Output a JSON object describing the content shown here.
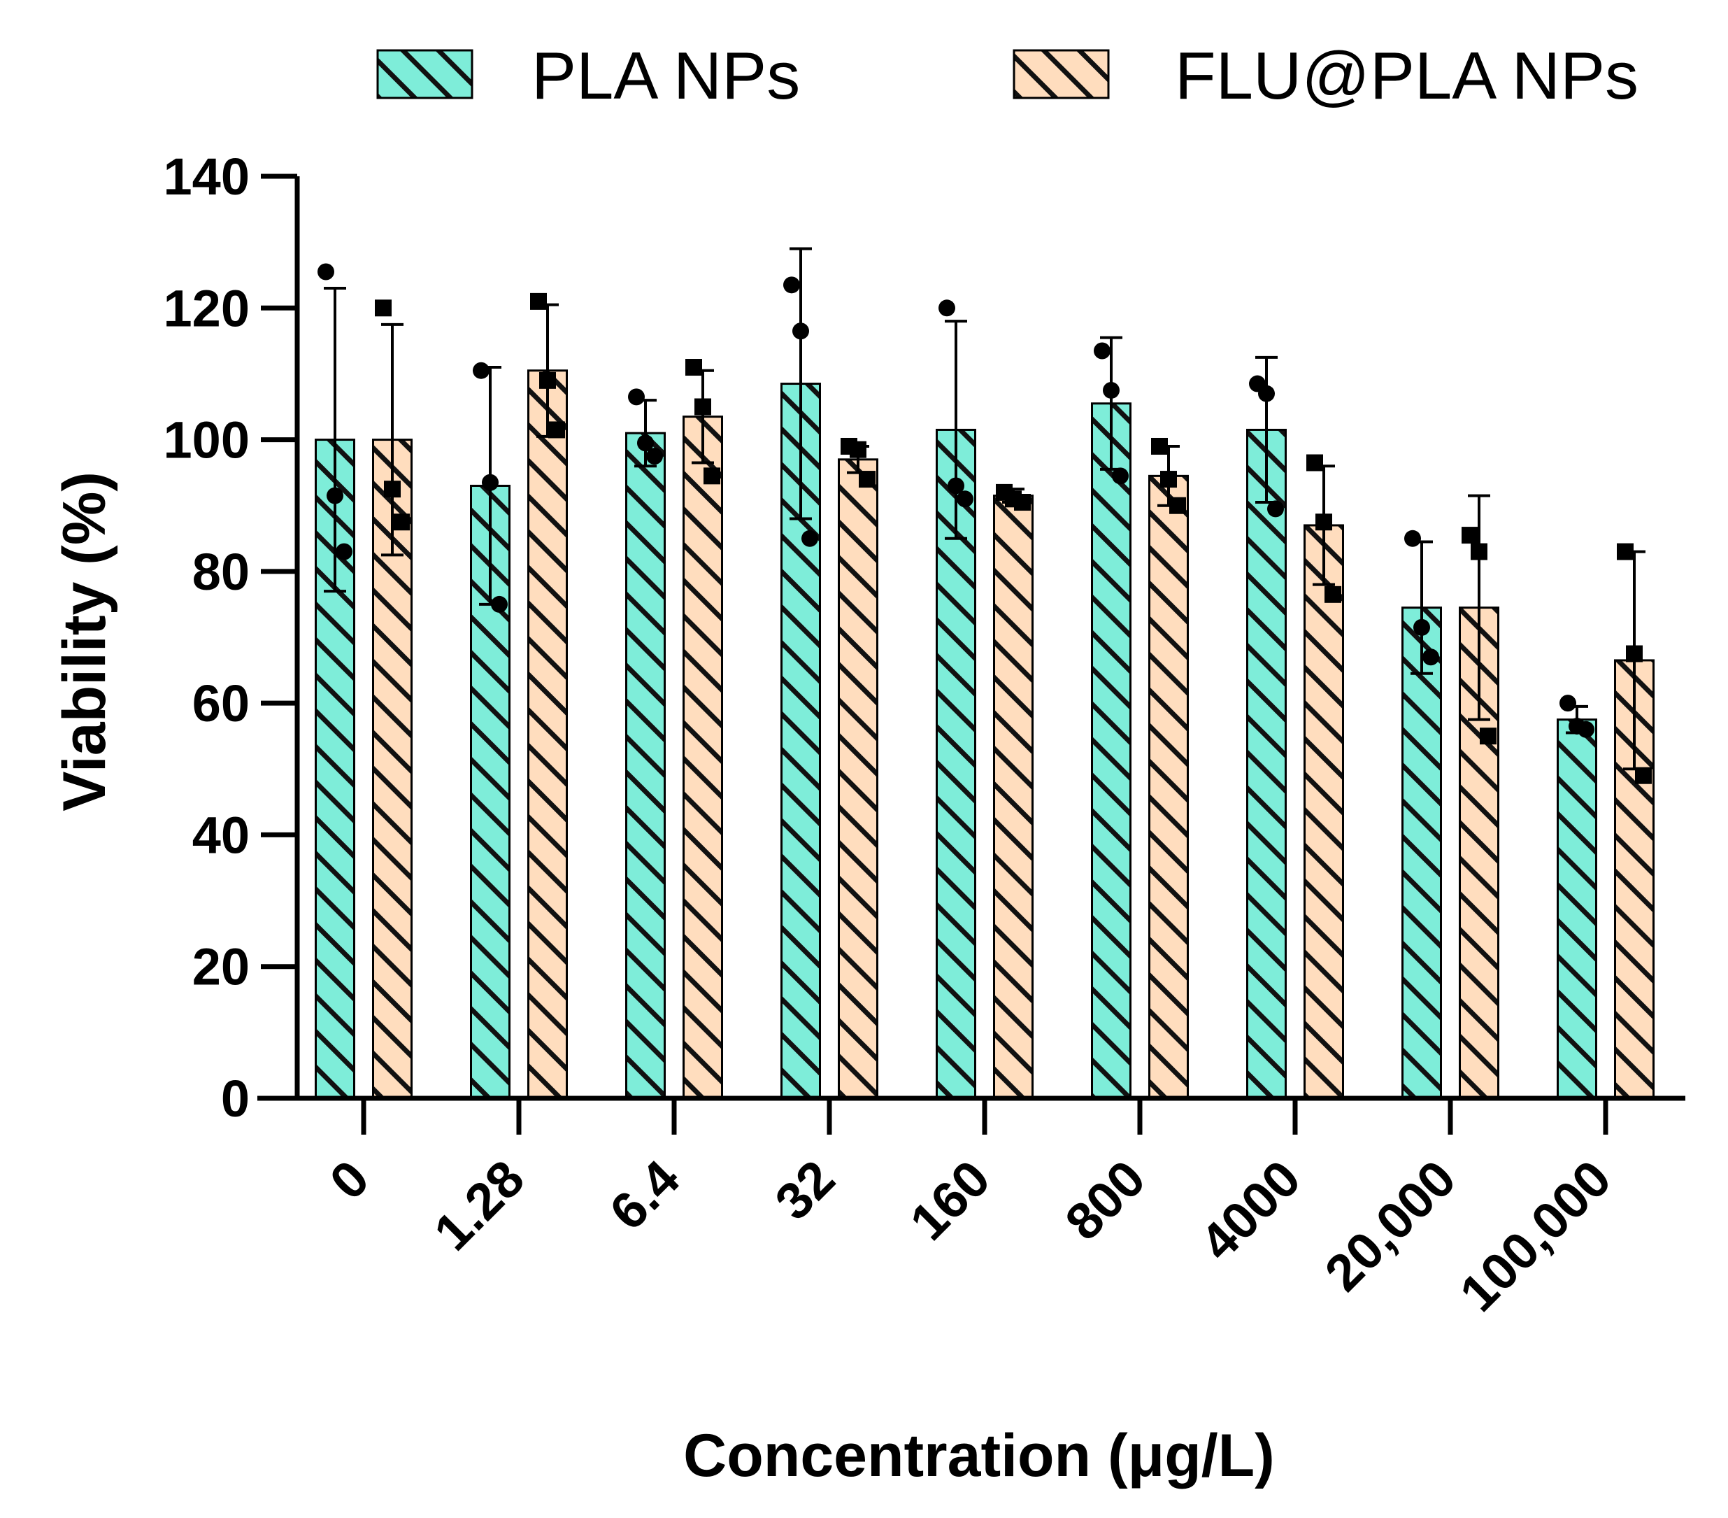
{
  "chart_data": {
    "type": "bar",
    "title": "",
    "xlabel": "Concentration (μg/L)",
    "ylabel": "Viability (%)",
    "ylim": [
      0,
      140
    ],
    "yticks": [
      "0",
      "20",
      "40",
      "60",
      "80",
      "100",
      "120",
      "140"
    ],
    "categories": [
      "0",
      "1.28",
      "6.4",
      "32",
      "160",
      "800",
      "4000",
      "20,000",
      "100,000"
    ],
    "legend_position": "top",
    "series": [
      {
        "name": "PLA NPs",
        "color": "#7EEDD9",
        "marker": "circle",
        "values": [
          100,
          93,
          101,
          108.5,
          101.5,
          105.5,
          101.5,
          74.5,
          57.5
        ],
        "errors": [
          23,
          18,
          5,
          20.5,
          16.5,
          10,
          11,
          10,
          2
        ],
        "points": [
          [
            125.5,
            91.5,
            83
          ],
          [
            110.5,
            93.5,
            75
          ],
          [
            106.5,
            99.5,
            97.5
          ],
          [
            123.5,
            116.5,
            85
          ],
          [
            120,
            93,
            91
          ],
          [
            113.5,
            107.5,
            94.5
          ],
          [
            108.5,
            107,
            89.5
          ],
          [
            85,
            71.5,
            67
          ],
          [
            60,
            56.5,
            56
          ]
        ]
      },
      {
        "name": "FLU@PLA NPs",
        "color": "#FFDDBE",
        "marker": "square",
        "values": [
          100,
          110.5,
          103.5,
          97,
          91.5,
          94.5,
          87,
          74.5,
          66.5
        ],
        "errors": [
          17.5,
          10,
          7,
          2,
          1,
          4.5,
          9,
          17,
          16.5
        ],
        "points": [
          [
            120,
            92.5,
            87.5
          ],
          [
            121,
            109,
            101.5
          ],
          [
            111,
            105,
            94.5
          ],
          [
            99,
            98.5,
            94
          ],
          [
            92,
            91,
            90.5
          ],
          [
            99,
            94,
            90
          ],
          [
            96.5,
            87.5,
            76.5
          ],
          [
            85.5,
            83,
            55
          ],
          [
            83,
            67.5,
            49
          ]
        ]
      }
    ]
  }
}
